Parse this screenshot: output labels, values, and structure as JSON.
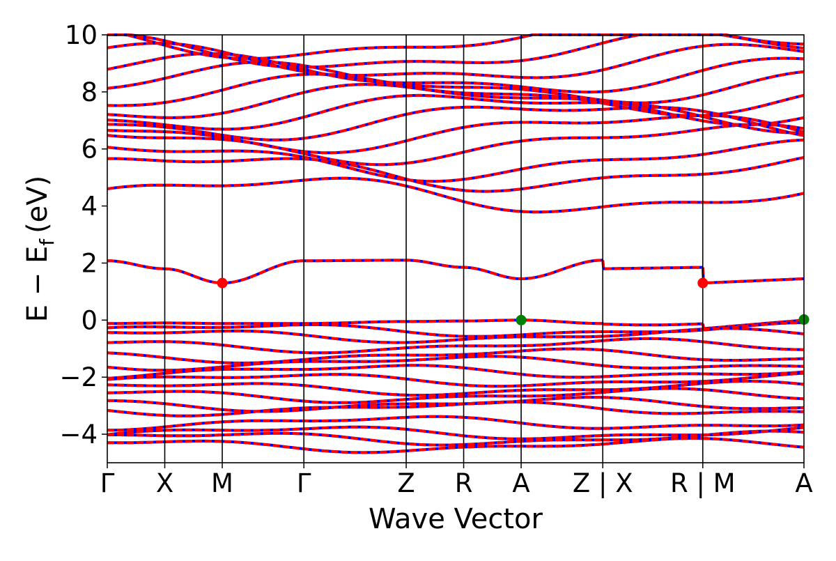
{
  "chart_data": {
    "type": "line",
    "xlabel": "Wave Vector",
    "ylabel_main": "E − E",
    "ylabel_sub": "f",
    "ylabel_unit": "(eV)",
    "ylim": [
      -5,
      10
    ],
    "y_ticks": [
      {
        "value": -4,
        "label": "−4"
      },
      {
        "value": -2,
        "label": "−2"
      },
      {
        "value": 0,
        "label": "0"
      },
      {
        "value": 2,
        "label": "2"
      },
      {
        "value": 4,
        "label": "4"
      },
      {
        "value": 6,
        "label": "6"
      },
      {
        "value": 8,
        "label": "8"
      },
      {
        "value": 10,
        "label": "10"
      }
    ],
    "k_points": [
      {
        "x": 0.0,
        "label": "Γ"
      },
      {
        "x": 0.5,
        "label": "X"
      },
      {
        "x": 1.0,
        "label": "M"
      },
      {
        "x": 1.71,
        "label": "Γ"
      },
      {
        "x": 2.6,
        "label": "Z"
      },
      {
        "x": 3.1,
        "label": "R"
      },
      {
        "x": 3.6,
        "label": "A"
      },
      {
        "x": 4.31,
        "label": "Z | X"
      },
      {
        "x": 5.18,
        "label": "R | M"
      },
      {
        "x": 6.06,
        "label": "A"
      }
    ],
    "path_breaks": [
      4.31,
      5.18
    ],
    "series": [
      {
        "color": "#0000ff",
        "style": "solid"
      },
      {
        "color": "#ff0000",
        "style": "dashed"
      }
    ],
    "conduction_band_bottom": [
      {
        "x": 0.0,
        "y": 2.08
      },
      {
        "x": 0.5,
        "y": 1.8
      },
      {
        "x": 1.0,
        "y": 1.3
      },
      {
        "x": 1.71,
        "y": 2.08
      },
      {
        "x": 2.6,
        "y": 2.1
      },
      {
        "x": 3.1,
        "y": 1.85
      },
      {
        "x": 3.6,
        "y": 1.45
      },
      {
        "x": 4.31,
        "y": 2.1
      }
    ],
    "valence_band_top": [
      {
        "x": 0.0,
        "y": -0.12
      },
      {
        "x": 0.5,
        "y": -0.1
      },
      {
        "x": 1.0,
        "y": -0.12
      },
      {
        "x": 1.71,
        "y": -0.12
      },
      {
        "x": 2.6,
        "y": -0.05
      },
      {
        "x": 3.1,
        "y": -0.03
      },
      {
        "x": 3.6,
        "y": 0.0
      },
      {
        "x": 4.31,
        "y": -0.12
      }
    ],
    "markers": [
      {
        "x": 1.0,
        "y": 1.3,
        "color": "#ff0000"
      },
      {
        "x": 5.18,
        "y": 1.3,
        "color": "#ff0000"
      },
      {
        "x": 3.6,
        "y": 0.0,
        "color": "#008000"
      },
      {
        "x": 6.06,
        "y": 0.02,
        "color": "#008000"
      }
    ],
    "grid": false,
    "legend": "none"
  }
}
